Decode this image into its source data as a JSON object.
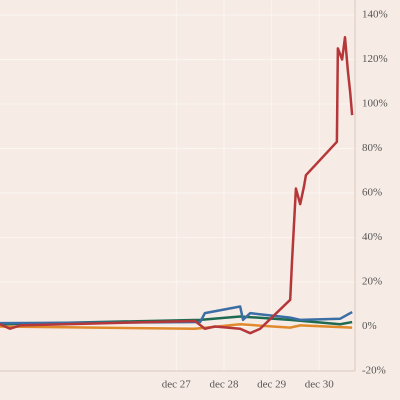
{
  "chart_data": {
    "type": "line",
    "xlim": [
      23.3,
      30.75
    ],
    "xticks": [
      {
        "value": 27,
        "label": "dec 27"
      },
      {
        "value": 28,
        "label": "dec 28"
      },
      {
        "value": 29,
        "label": "dec 29"
      },
      {
        "value": 30,
        "label": "dec 30"
      }
    ],
    "ylim": [
      -20,
      140
    ],
    "yticks": [
      {
        "value": -20,
        "label": "-20%"
      },
      {
        "value": 0,
        "label": "0%"
      },
      {
        "value": 20,
        "label": "20%"
      },
      {
        "value": 40,
        "label": "40%"
      },
      {
        "value": 60,
        "label": "60%"
      },
      {
        "value": 80,
        "label": "80%"
      },
      {
        "value": 100,
        "label": "100%"
      },
      {
        "value": 120,
        "label": "120%"
      },
      {
        "value": 140,
        "label": "140%"
      }
    ],
    "grid": true,
    "series": [
      {
        "color": "#b5373a",
        "x": [
          23.3,
          23.51,
          23.72,
          27.39,
          27.6,
          27.81,
          28.34,
          28.55,
          28.76,
          29.39,
          29.43,
          29.51,
          29.6,
          29.68,
          29.72,
          30.37,
          30.39,
          30.48,
          30.54,
          30.6,
          30.65,
          30.69
        ],
        "values": [
          1,
          -1,
          0.5,
          2.5,
          -1,
          0,
          -1,
          -3,
          -1,
          12,
          30,
          62,
          55,
          63,
          68,
          83,
          125,
          120,
          130,
          115,
          105,
          95
        ]
      },
      {
        "color": "#3a6ea5",
        "x": [
          23.3,
          27.5,
          27.6,
          28.34,
          28.4,
          28.55,
          29.39,
          29.6,
          30.44,
          30.69
        ],
        "values": [
          1.5,
          2,
          6,
          9,
          3,
          6,
          4,
          3,
          3.5,
          6.5
        ]
      },
      {
        "color": "#1e6b52",
        "x": [
          23.3,
          27.5,
          28.34,
          29.39,
          30.44,
          30.69
        ],
        "values": [
          1,
          3,
          4.5,
          3,
          1,
          2
        ]
      },
      {
        "color": "#e08a2c",
        "x": [
          23.3,
          27.39,
          28.34,
          29.39,
          29.6,
          30.69
        ],
        "values": [
          0,
          -1,
          1,
          -0.5,
          0.5,
          -0.5
        ]
      }
    ]
  }
}
